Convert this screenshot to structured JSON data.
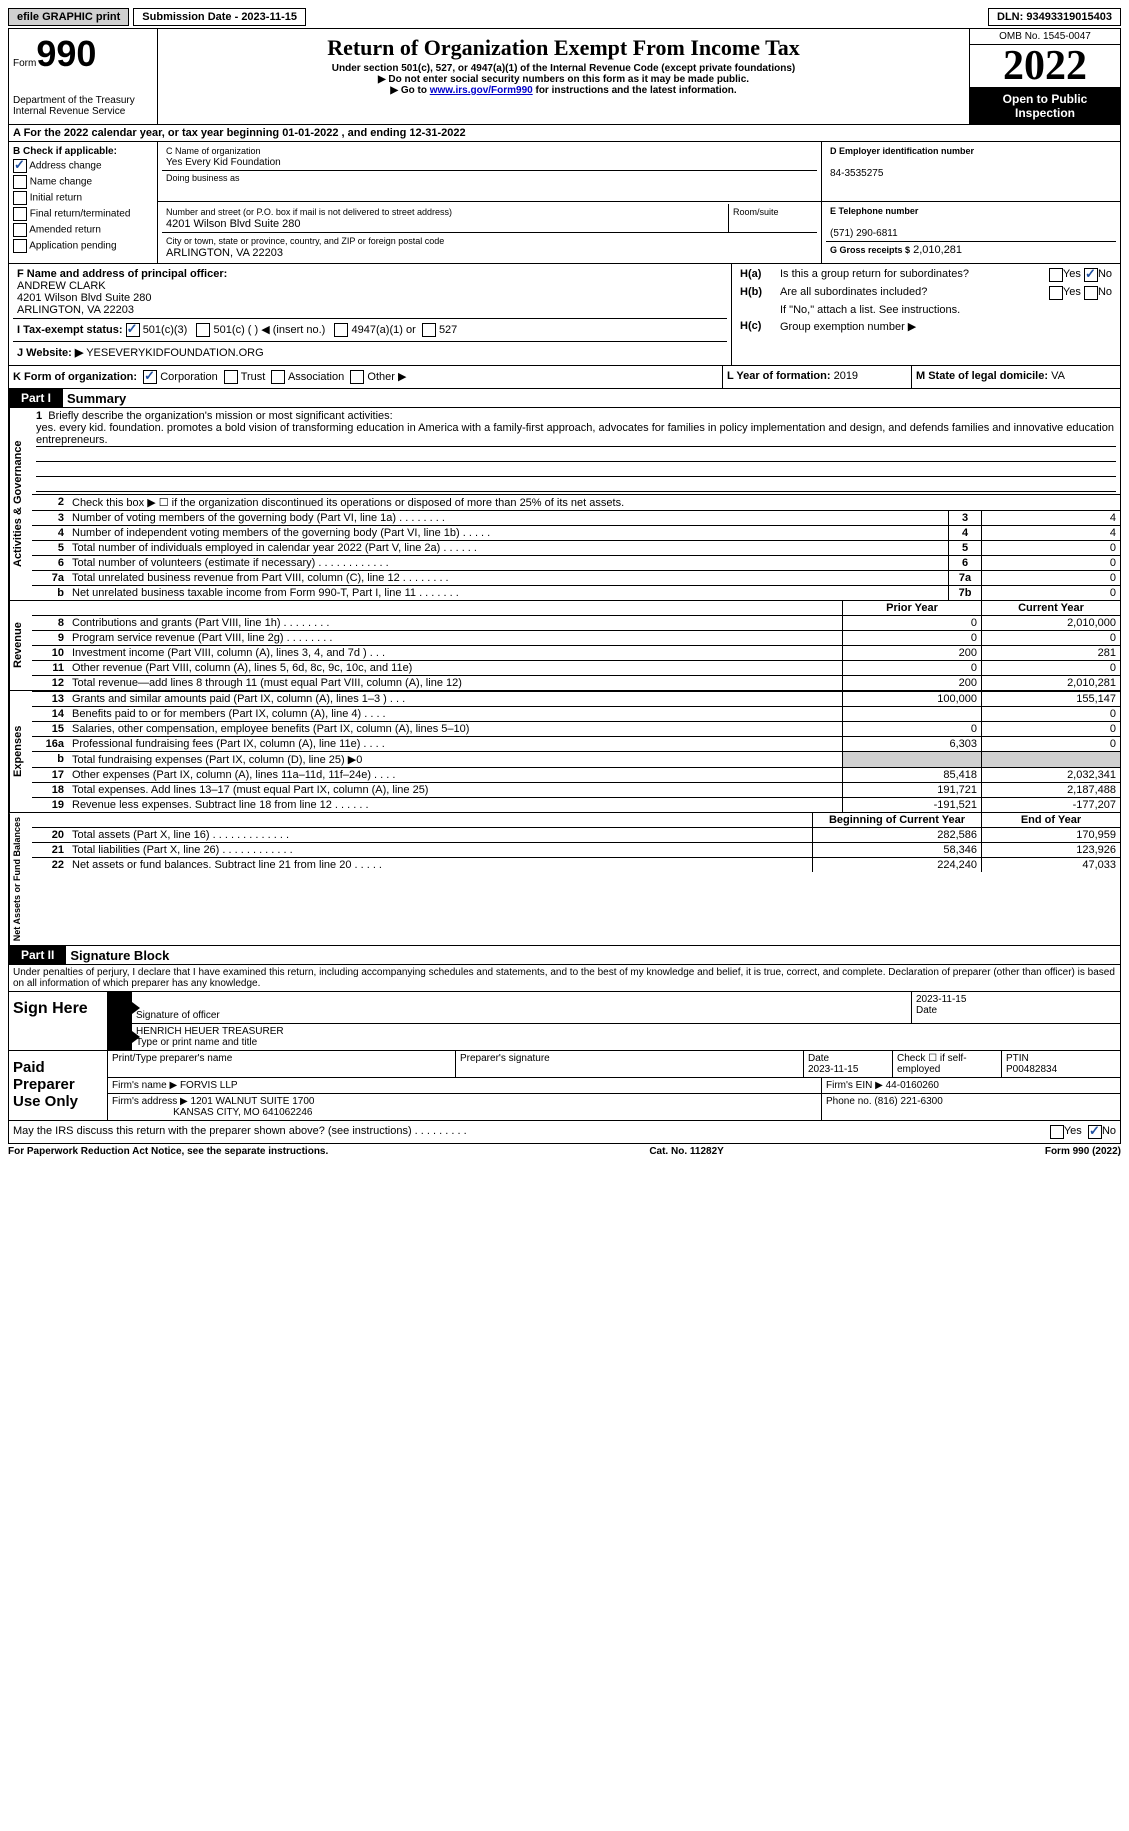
{
  "top": {
    "efile": "efile GRAPHIC print",
    "sub_date": "Submission Date - 2023-11-15",
    "dln": "DLN: 93493319015403"
  },
  "header": {
    "form_label": "Form",
    "form_no": "990",
    "dept": "Department of the Treasury\nInternal Revenue Service",
    "title": "Return of Organization Exempt From Income Tax",
    "sub1": "Under section 501(c), 527, or 4947(a)(1) of the Internal Revenue Code (except private foundations)",
    "sub2": "▶ Do not enter social security numbers on this form as it may be made public.",
    "sub3_pre": "▶ Go to ",
    "sub3_link": "www.irs.gov/Form990",
    "sub3_post": " for instructions and the latest information.",
    "omb": "OMB No. 1545-0047",
    "year": "2022",
    "open": "Open to Public Inspection"
  },
  "a_line": "A  For the 2022 calendar year, or tax year beginning 01-01-2022    , and ending 12-31-2022",
  "b": {
    "title": "B Check if applicable:",
    "items": [
      "Address change",
      "Name change",
      "Initial return",
      "Final return/terminated",
      "Amended return",
      "Application pending"
    ],
    "checked": [
      true,
      false,
      false,
      false,
      false,
      false
    ]
  },
  "c": {
    "name_lbl": "C Name of organization",
    "name": "Yes Every Kid Foundation",
    "dba_lbl": "Doing business as",
    "dba": "",
    "street_lbl": "Number and street (or P.O. box if mail is not delivered to street address)",
    "room_lbl": "Room/suite",
    "street": "4201 Wilson Blvd Suite 280",
    "city_lbl": "City or town, state or province, country, and ZIP or foreign postal code",
    "city": "ARLINGTON, VA  22203"
  },
  "d": {
    "lbl": "D Employer identification number",
    "val": "84-3535275"
  },
  "e": {
    "lbl": "E Telephone number",
    "val": "(571) 290-6811"
  },
  "g": {
    "lbl": "G Gross receipts $",
    "val": "2,010,281"
  },
  "f": {
    "lbl": "F Name and address of principal officer:",
    "name": "ANDREW CLARK",
    "addr1": "4201 Wilson Blvd Suite 280",
    "addr2": "ARLINGTON, VA  22203"
  },
  "h": {
    "a": "Is this a group return for subordinates?",
    "b": "Are all subordinates included?",
    "note": "If \"No,\" attach a list. See instructions.",
    "c": "Group exemption number ▶",
    "yes": "Yes",
    "no": "No"
  },
  "i": {
    "lbl": "I    Tax-exempt status:",
    "opt1": "501(c)(3)",
    "opt2": "501(c) (   ) ◀ (insert no.)",
    "opt3": "4947(a)(1) or",
    "opt4": "527"
  },
  "j": {
    "lbl": "J   Website: ▶",
    "val": "YESEVERYKIDFOUNDATION.ORG"
  },
  "k": {
    "lbl": "K Form of organization:",
    "opts": [
      "Corporation",
      "Trust",
      "Association",
      "Other ▶"
    ]
  },
  "l": {
    "lbl": "L Year of formation:",
    "val": "2019"
  },
  "m": {
    "lbl": "M State of legal domicile:",
    "val": "VA"
  },
  "part1": {
    "hdr": "Part I",
    "title": "Summary"
  },
  "mission": {
    "lbl": "Briefly describe the organization's mission or most significant activities:",
    "text": "yes. every kid. foundation. promotes a bold vision of transforming education in America with a family-first approach, advocates for families in policy implementation and design, and defends families and innovative education entrepreneurs."
  },
  "gov_lines": [
    {
      "n": "2",
      "d": "Check this box ▶ ☐  if the organization discontinued its operations or disposed of more than 25% of its net assets."
    },
    {
      "n": "3",
      "d": "Number of voting members of the governing body (Part VI, line 1a)   .    .    .    .    .    .    .    .",
      "box": "3",
      "v": "4"
    },
    {
      "n": "4",
      "d": "Number of independent voting members of the governing body (Part VI, line 1b)   .    .    .    .    .",
      "box": "4",
      "v": "4"
    },
    {
      "n": "5",
      "d": "Total number of individuals employed in calendar year 2022 (Part V, line 2a)   .    .    .    .    .    .",
      "box": "5",
      "v": "0"
    },
    {
      "n": "6",
      "d": "Total number of volunteers (estimate if necessary)    .    .    .    .    .    .    .    .    .    .    .    .",
      "box": "6",
      "v": "0"
    },
    {
      "n": "7a",
      "d": "Total unrelated business revenue from Part VIII, column (C), line 12   .    .    .    .    .    .    .    .",
      "box": "7a",
      "v": "0"
    },
    {
      "n": "b",
      "d": "Net unrelated business taxable income from Form 990-T, Part I, line 11   .    .    .    .    .    .    .",
      "box": "7b",
      "v": "0"
    }
  ],
  "col_hdr": {
    "prior": "Prior Year",
    "current": "Current Year"
  },
  "revenue": [
    {
      "n": "8",
      "d": "Contributions and grants (Part VIII, line 1h)   .    .    .    .    .    .    .    .",
      "p": "0",
      "c": "2,010,000"
    },
    {
      "n": "9",
      "d": "Program service revenue (Part VIII, line 2g)    .    .    .    .    .    .    .    .",
      "p": "0",
      "c": "0"
    },
    {
      "n": "10",
      "d": "Investment income (Part VIII, column (A), lines 3, 4, and 7d )   .    .    .",
      "p": "200",
      "c": "281"
    },
    {
      "n": "11",
      "d": "Other revenue (Part VIII, column (A), lines 5, 6d, 8c, 9c, 10c, and 11e)",
      "p": "0",
      "c": "0"
    },
    {
      "n": "12",
      "d": "Total revenue—add lines 8 through 11 (must equal Part VIII, column (A), line 12)",
      "p": "200",
      "c": "2,010,281"
    }
  ],
  "expenses": [
    {
      "n": "13",
      "d": "Grants and similar amounts paid (Part IX, column (A), lines 1–3 )   .    .    .",
      "p": "100,000",
      "c": "155,147"
    },
    {
      "n": "14",
      "d": "Benefits paid to or for members (Part IX, column (A), line 4)   .    .    .    .",
      "p": "",
      "c": "0"
    },
    {
      "n": "15",
      "d": "Salaries, other compensation, employee benefits (Part IX, column (A), lines 5–10)",
      "p": "0",
      "c": "0"
    },
    {
      "n": "16a",
      "d": "Professional fundraising fees (Part IX, column (A), line 11e)   .    .    .    .",
      "p": "6,303",
      "c": "0"
    },
    {
      "n": "b",
      "d": "Total fundraising expenses (Part IX, column (D), line 25) ▶0",
      "p": "grey",
      "c": "grey"
    },
    {
      "n": "17",
      "d": "Other expenses (Part IX, column (A), lines 11a–11d, 11f–24e)   .    .    .    .",
      "p": "85,418",
      "c": "2,032,341"
    },
    {
      "n": "18",
      "d": "Total expenses. Add lines 13–17 (must equal Part IX, column (A), line 25)",
      "p": "191,721",
      "c": "2,187,488"
    },
    {
      "n": "19",
      "d": "Revenue less expenses. Subtract line 18 from line 12   .    .    .    .    .    .",
      "p": "-191,521",
      "c": "-177,207"
    }
  ],
  "net_hdr": {
    "beg": "Beginning of Current Year",
    "end": "End of Year"
  },
  "net": [
    {
      "n": "20",
      "d": "Total assets (Part X, line 16)   .    .    .    .    .    .    .    .    .    .    .    .    .",
      "p": "282,586",
      "c": "170,959"
    },
    {
      "n": "21",
      "d": "Total liabilities (Part X, line 26)   .    .    .    .    .    .    .    .    .    .    .    .",
      "p": "58,346",
      "c": "123,926"
    },
    {
      "n": "22",
      "d": "Net assets or fund balances. Subtract line 21 from line 20   .    .    .    .    .",
      "p": "224,240",
      "c": "47,033"
    }
  ],
  "part2": {
    "hdr": "Part II",
    "title": "Signature Block"
  },
  "penalties": "Under penalties of perjury, I declare that I have examined this return, including accompanying schedules and statements, and to the best of my knowledge and belief, it is true, correct, and complete. Declaration of preparer (other than officer) is based on all information of which preparer has any knowledge.",
  "sign": {
    "here": "Sign Here",
    "sig_lbl": "Signature of officer",
    "date_lbl": "Date",
    "date": "2023-11-15",
    "name": "HENRICH HEUER  TREASURER",
    "name_lbl": "Type or print name and title"
  },
  "paid": {
    "title": "Paid Preparer Use Only",
    "print_lbl": "Print/Type preparer's name",
    "sig_lbl": "Preparer's signature",
    "date_lbl": "Date",
    "date": "2023-11-15",
    "check_lbl": "Check ☐ if self-employed",
    "ptin_lbl": "PTIN",
    "ptin": "P00482834",
    "firm_name_lbl": "Firm's name     ▶",
    "firm_name": "FORVIS LLP",
    "firm_ein_lbl": "Firm's EIN ▶",
    "firm_ein": "44-0160260",
    "firm_addr_lbl": "Firm's address ▶",
    "firm_addr1": "1201 WALNUT SUITE 1700",
    "firm_addr2": "KANSAS CITY, MO  641062246",
    "phone_lbl": "Phone no.",
    "phone": "(816) 221-6300"
  },
  "discuss": "May the IRS discuss this return with the preparer shown above? (see instructions)    .    .    .    .    .    .    .    .    .",
  "footer": {
    "left": "For Paperwork Reduction Act Notice, see the separate instructions.",
    "mid": "Cat. No. 11282Y",
    "right": "Form 990 (2022)"
  },
  "side_labels": {
    "gov": "Activities & Governance",
    "rev": "Revenue",
    "exp": "Expenses",
    "net": "Net Assets or Fund Balances"
  }
}
